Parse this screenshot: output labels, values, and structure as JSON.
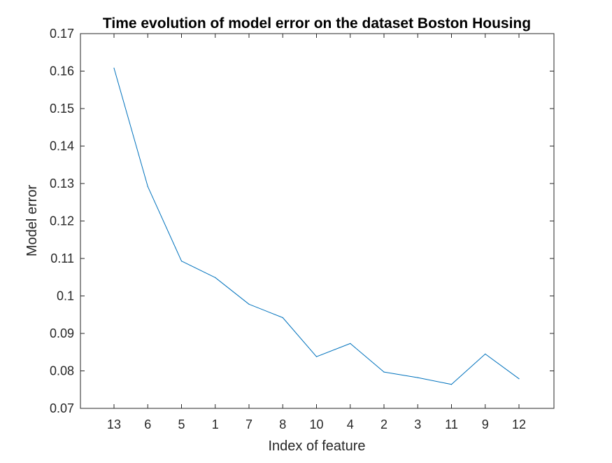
{
  "chart_data": {
    "type": "line",
    "title": "Time evolution of model error on the dataset Boston Housing",
    "xlabel": "Index of feature",
    "ylabel": "Model error",
    "categories": [
      "13",
      "6",
      "5",
      "1",
      "7",
      "8",
      "10",
      "4",
      "2",
      "3",
      "11",
      "9",
      "12"
    ],
    "series": [
      {
        "values": [
          0.1608,
          0.1292,
          0.1093,
          0.1049,
          0.0978,
          0.0942,
          0.0838,
          0.0873,
          0.0797,
          0.0782,
          0.0764,
          0.0845,
          0.0779
        ]
      }
    ],
    "ylim": [
      0.07,
      0.17
    ],
    "yticks": [
      "0.07",
      "0.08",
      "0.09",
      "0.1",
      "0.11",
      "0.12",
      "0.13",
      "0.14",
      "0.15",
      "0.16",
      "0.17"
    ],
    "ytick_values": [
      0.07,
      0.08,
      0.09,
      0.1,
      0.11,
      0.12,
      0.13,
      0.14,
      0.15,
      0.16,
      0.17
    ],
    "grid": false,
    "line_color": "#0072BD",
    "axis_color": "#262626"
  }
}
